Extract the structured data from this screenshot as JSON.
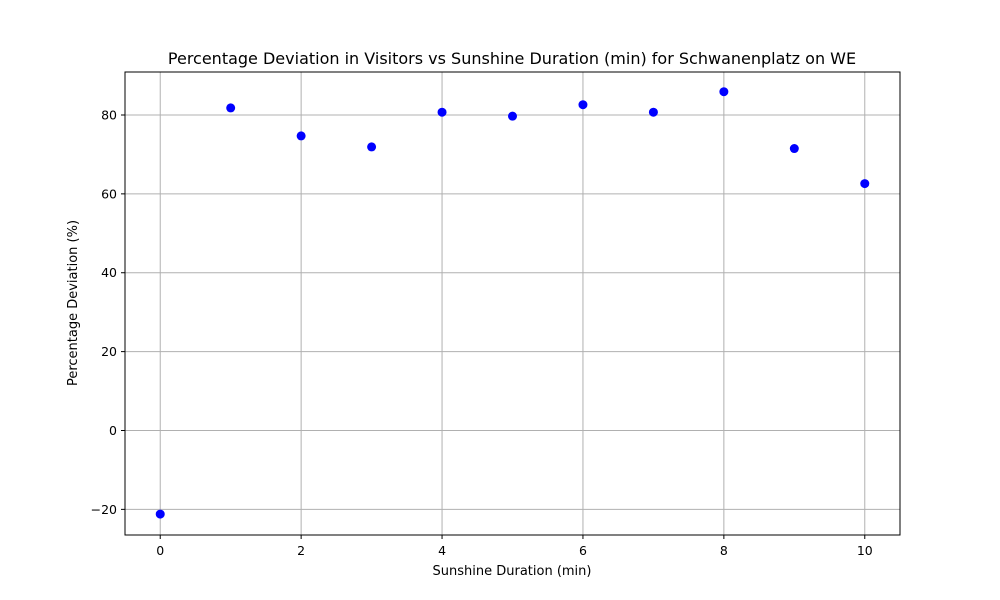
{
  "chart_data": {
    "type": "scatter",
    "title": "Percentage Deviation in Visitors vs Sunshine Duration (min) for Schwanenplatz on WE",
    "xlabel": "Sunshine Duration (min)",
    "ylabel": "Percentage Deviation (%)",
    "x": [
      0,
      1,
      2,
      3,
      4,
      5,
      6,
      7,
      8,
      9,
      10
    ],
    "y": [
      -21.2,
      81.8,
      74.7,
      71.9,
      80.7,
      79.7,
      82.6,
      80.7,
      85.9,
      71.5,
      62.6
    ],
    "xlim": [
      -0.5,
      10.5
    ],
    "ylim": [
      -26.5,
      90.9
    ],
    "xticks": [
      0,
      2,
      4,
      6,
      8,
      10
    ],
    "yticks": [
      -20,
      0,
      20,
      40,
      60,
      80
    ],
    "xtick_labels": [
      "0",
      "2",
      "4",
      "6",
      "8",
      "10"
    ],
    "ytick_labels": [
      "−20",
      "0",
      "20",
      "40",
      "60",
      "80"
    ],
    "grid": true,
    "marker_color": "#0000ff"
  }
}
